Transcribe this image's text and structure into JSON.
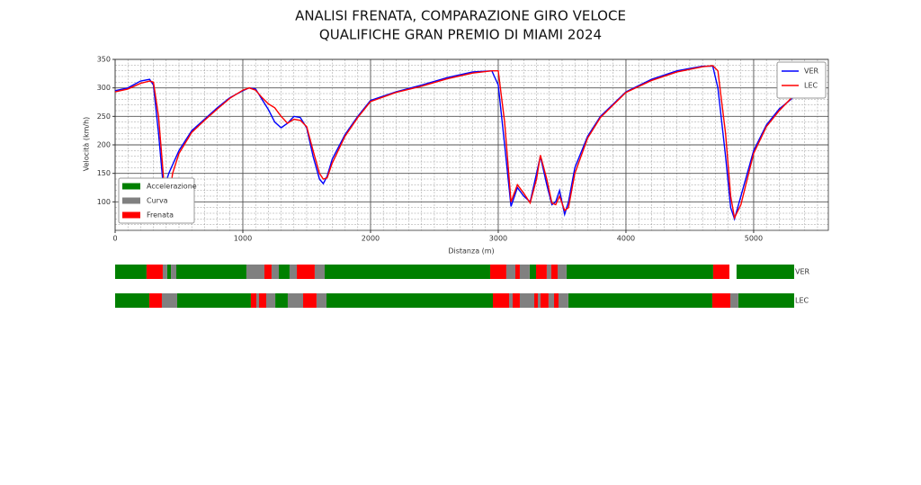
{
  "chart_data": {
    "type": "line",
    "title": [
      "ANALISI FRENATA, COMPARAZIONE GIRO VELOCE",
      "QUALIFICHE GRAN PREMIO DI MIAMI 2024"
    ],
    "xlabel": "Distanza (m)",
    "ylabel": "Velocità (km/h)",
    "x": [
      0,
      100,
      200,
      270,
      300,
      340,
      380,
      420,
      450,
      500,
      600,
      700,
      800,
      900,
      1000,
      1050,
      1100,
      1150,
      1200,
      1250,
      1300,
      1350,
      1400,
      1450,
      1500,
      1550,
      1600,
      1630,
      1660,
      1700,
      1800,
      1900,
      2000,
      2200,
      2400,
      2600,
      2800,
      2950,
      3000,
      3050,
      3100,
      3150,
      3200,
      3250,
      3300,
      3330,
      3380,
      3420,
      3450,
      3480,
      3520,
      3550,
      3600,
      3700,
      3800,
      4000,
      4200,
      4400,
      4600,
      4680,
      4720,
      4780,
      4820,
      4850,
      4900,
      5000,
      5100,
      5200,
      5320
    ],
    "series": [
      {
        "name": "VER",
        "color": "#0000ff",
        "values": [
          295,
          300,
          312,
          315,
          305,
          220,
          120,
          150,
          165,
          190,
          225,
          245,
          265,
          283,
          295,
          300,
          298,
          280,
          262,
          240,
          230,
          238,
          250,
          248,
          230,
          180,
          140,
          132,
          145,
          175,
          218,
          250,
          278,
          293,
          305,
          318,
          328,
          330,
          305,
          200,
          92,
          125,
          110,
          100,
          150,
          180,
          130,
          95,
          100,
          120,
          78,
          100,
          160,
          215,
          250,
          293,
          315,
          330,
          338,
          338,
          300,
          180,
          90,
          70,
          110,
          190,
          235,
          263,
          285
        ]
      },
      {
        "name": "LEC",
        "color": "#ff0000",
        "values": [
          293,
          298,
          308,
          312,
          310,
          250,
          140,
          100,
          150,
          185,
          222,
          243,
          263,
          282,
          296,
          300,
          296,
          283,
          272,
          265,
          250,
          238,
          245,
          243,
          232,
          190,
          150,
          140,
          142,
          168,
          215,
          248,
          276,
          292,
          303,
          316,
          326,
          330,
          330,
          240,
          100,
          130,
          115,
          98,
          140,
          182,
          140,
          98,
          95,
          110,
          85,
          90,
          150,
          212,
          248,
          292,
          313,
          328,
          337,
          339,
          330,
          220,
          110,
          72,
          95,
          185,
          232,
          260,
          288
        ]
      }
    ],
    "xlim": [
      0,
      5585
    ],
    "ylim": [
      50,
      350
    ],
    "xticks": [
      0,
      1000,
      2000,
      3000,
      4000,
      5000
    ],
    "yticks": [
      100,
      150,
      200,
      250,
      300,
      350
    ],
    "xminor": 100,
    "yminor": 10,
    "grid": true,
    "legend": "upper right",
    "phases": [
      {
        "name": "Accelerazione",
        "color": "#008000"
      },
      {
        "name": "Curva",
        "color": "#808080"
      },
      {
        "name": "Frenata",
        "color": "#ff0000"
      }
    ],
    "phase_legend": "lower left",
    "bars": [
      {
        "name": "VER",
        "segments": [
          [
            [
              0,
              246
            ],
            [
              408,
              437
            ],
            [
              479,
              1028
            ],
            [
              1282,
              1366
            ],
            [
              1641,
              2937
            ],
            [
              3246,
              3296
            ],
            [
              3535,
              4683
            ],
            [
              4866,
              5317
            ]
          ],
          [
            [
              373,
              408
            ],
            [
              437,
              479
            ],
            [
              1028,
              1169
            ],
            [
              1225,
              1282
            ],
            [
              1366,
              1423
            ],
            [
              1563,
              1641
            ],
            [
              3063,
              3134
            ],
            [
              3169,
              3246
            ],
            [
              3380,
              3415
            ],
            [
              3465,
              3535
            ]
          ],
          [
            [
              246,
              373
            ],
            [
              1169,
              1225
            ],
            [
              1423,
              1563
            ],
            [
              2937,
              3063
            ],
            [
              3134,
              3169
            ],
            [
              3296,
              3380
            ],
            [
              3415,
              3465
            ],
            [
              4683,
              4810
            ]
          ]
        ]
      },
      {
        "name": "LEC",
        "segments": [
          [
            [
              0,
              268
            ],
            [
              486,
              1063
            ],
            [
              1254,
              1352
            ],
            [
              1655,
              2958
            ],
            [
              3549,
              4676
            ],
            [
              4880,
              5317
            ]
          ],
          [
            [
              366,
              486
            ],
            [
              1106,
              1127
            ],
            [
              1183,
              1254
            ],
            [
              1352,
              1472
            ],
            [
              1577,
              1655
            ],
            [
              3085,
              3113
            ],
            [
              3169,
              3282
            ],
            [
              3310,
              3331
            ],
            [
              3394,
              3437
            ],
            [
              3472,
              3549
            ],
            [
              4817,
              4880
            ]
          ],
          [
            [
              268,
              366
            ],
            [
              1063,
              1106
            ],
            [
              1127,
              1183
            ],
            [
              1472,
              1577
            ],
            [
              2958,
              3085
            ],
            [
              3113,
              3169
            ],
            [
              3282,
              3310
            ],
            [
              3331,
              3394
            ],
            [
              3437,
              3472
            ],
            [
              4676,
              4817
            ]
          ]
        ]
      }
    ]
  }
}
